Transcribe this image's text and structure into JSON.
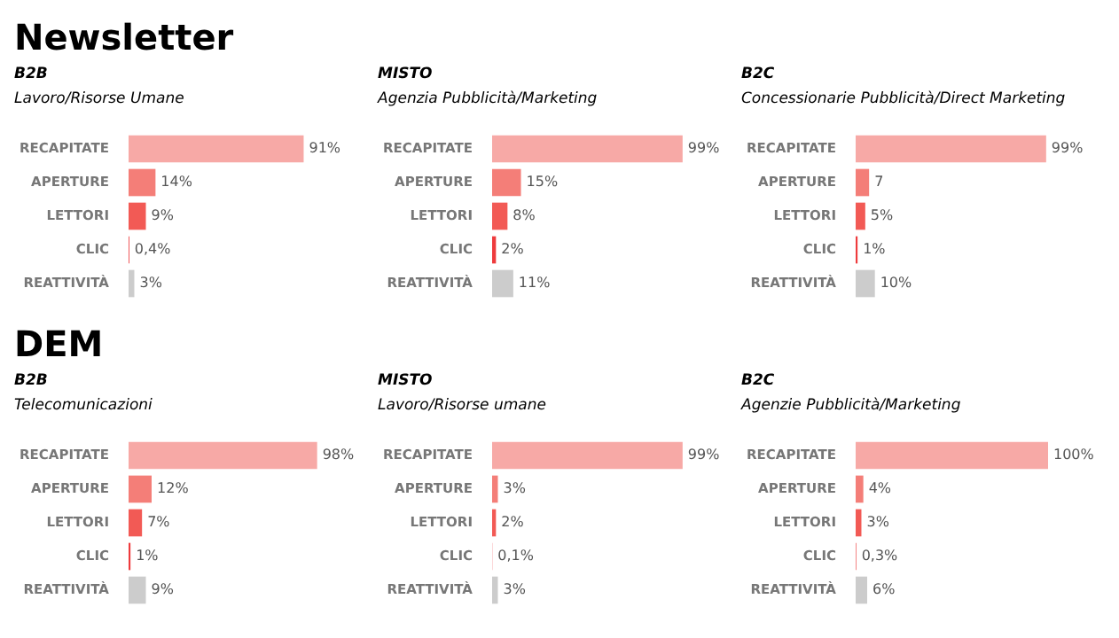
{
  "chart_data": [
    {
      "type": "bar",
      "orientation": "horizontal",
      "annotations": [
        "Newsletter"
      ],
      "title": "B2B",
      "subtitle": "Lavoro/Risorse Umane",
      "categories": [
        "RECAPITATE",
        "APERTURE",
        "LETTORI",
        "CLIC",
        "REATTIVITÀ"
      ],
      "values": [
        91,
        14,
        9,
        0.4,
        3
      ],
      "value_labels": [
        "91%",
        "14%",
        "9%",
        "0,4%",
        "3%"
      ],
      "colors": [
        "#f7a9a6",
        "#f47e78",
        "#f25a55",
        "#ee3b3d",
        "#cccccc"
      ],
      "tick_labels": "y",
      "grid": false,
      "legend": false
    },
    {
      "type": "bar",
      "orientation": "horizontal",
      "title": "MISTO",
      "subtitle": "Agenzia Pubblicità/Marketing",
      "categories": [
        "RECAPITATE",
        "APERTURE",
        "LETTORI",
        "CLIC",
        "REATTIVITÀ"
      ],
      "values": [
        99,
        15,
        8,
        2,
        11
      ],
      "value_labels": [
        "99%",
        "15%",
        "8%",
        "2%",
        "11%"
      ],
      "colors": [
        "#f7a9a6",
        "#f47e78",
        "#f25a55",
        "#ee3b3d",
        "#cccccc"
      ],
      "tick_labels": "y",
      "grid": false,
      "legend": false
    },
    {
      "type": "bar",
      "orientation": "horizontal",
      "title": "B2C",
      "subtitle": "Concessionarie Pubblicità/Direct Marketing",
      "categories": [
        "RECAPITATE",
        "APERTURE",
        "LETTORI",
        "CLIC",
        "REATTIVITÀ"
      ],
      "values": [
        99,
        7,
        5,
        1,
        10
      ],
      "value_labels": [
        "99%",
        "7",
        "5%",
        "1%",
        "10%"
      ],
      "colors": [
        "#f7a9a6",
        "#f47e78",
        "#f25a55",
        "#ee3b3d",
        "#cccccc"
      ],
      "tick_labels": "y",
      "grid": false,
      "legend": false
    },
    {
      "type": "bar",
      "orientation": "horizontal",
      "annotations": [
        "DEM"
      ],
      "title": "B2B",
      "subtitle": "Telecomunicazioni",
      "categories": [
        "RECAPITATE",
        "APERTURE",
        "LETTORI",
        "CLIC",
        "REATTIVITÀ"
      ],
      "values": [
        98,
        12,
        7,
        1,
        9
      ],
      "value_labels": [
        "98%",
        "12%",
        "7%",
        "1%",
        "9%"
      ],
      "colors": [
        "#f7a9a6",
        "#f47e78",
        "#f25a55",
        "#ee3b3d",
        "#cccccc"
      ],
      "tick_labels": "y",
      "grid": false,
      "legend": false
    },
    {
      "type": "bar",
      "orientation": "horizontal",
      "title": "MISTO",
      "subtitle": "Lavoro/Risorse umane",
      "categories": [
        "RECAPITATE",
        "APERTURE",
        "LETTORI",
        "CLIC",
        "REATTIVITÀ"
      ],
      "values": [
        99,
        3,
        2,
        0.1,
        3
      ],
      "value_labels": [
        "99%",
        "3%",
        "2%",
        "0,1%",
        "3%"
      ],
      "colors": [
        "#f7a9a6",
        "#f47e78",
        "#f25a55",
        "#ee3b3d",
        "#cccccc"
      ],
      "tick_labels": "y",
      "grid": false,
      "legend": false
    },
    {
      "type": "bar",
      "orientation": "horizontal",
      "title": "B2C",
      "subtitle": "Agenzie Pubblicità/Marketing",
      "categories": [
        "RECAPITATE",
        "APERTURE",
        "LETTORI",
        "CLIC",
        "REATTIVITÀ"
      ],
      "values": [
        100,
        4,
        3,
        0.3,
        6
      ],
      "value_labels": [
        "100%",
        "4%",
        "3%",
        "0,3%",
        "6%"
      ],
      "colors": [
        "#f7a9a6",
        "#f47e78",
        "#f25a55",
        "#ee3b3d",
        "#cccccc"
      ],
      "tick_labels": "y",
      "grid": false,
      "legend": false
    }
  ]
}
